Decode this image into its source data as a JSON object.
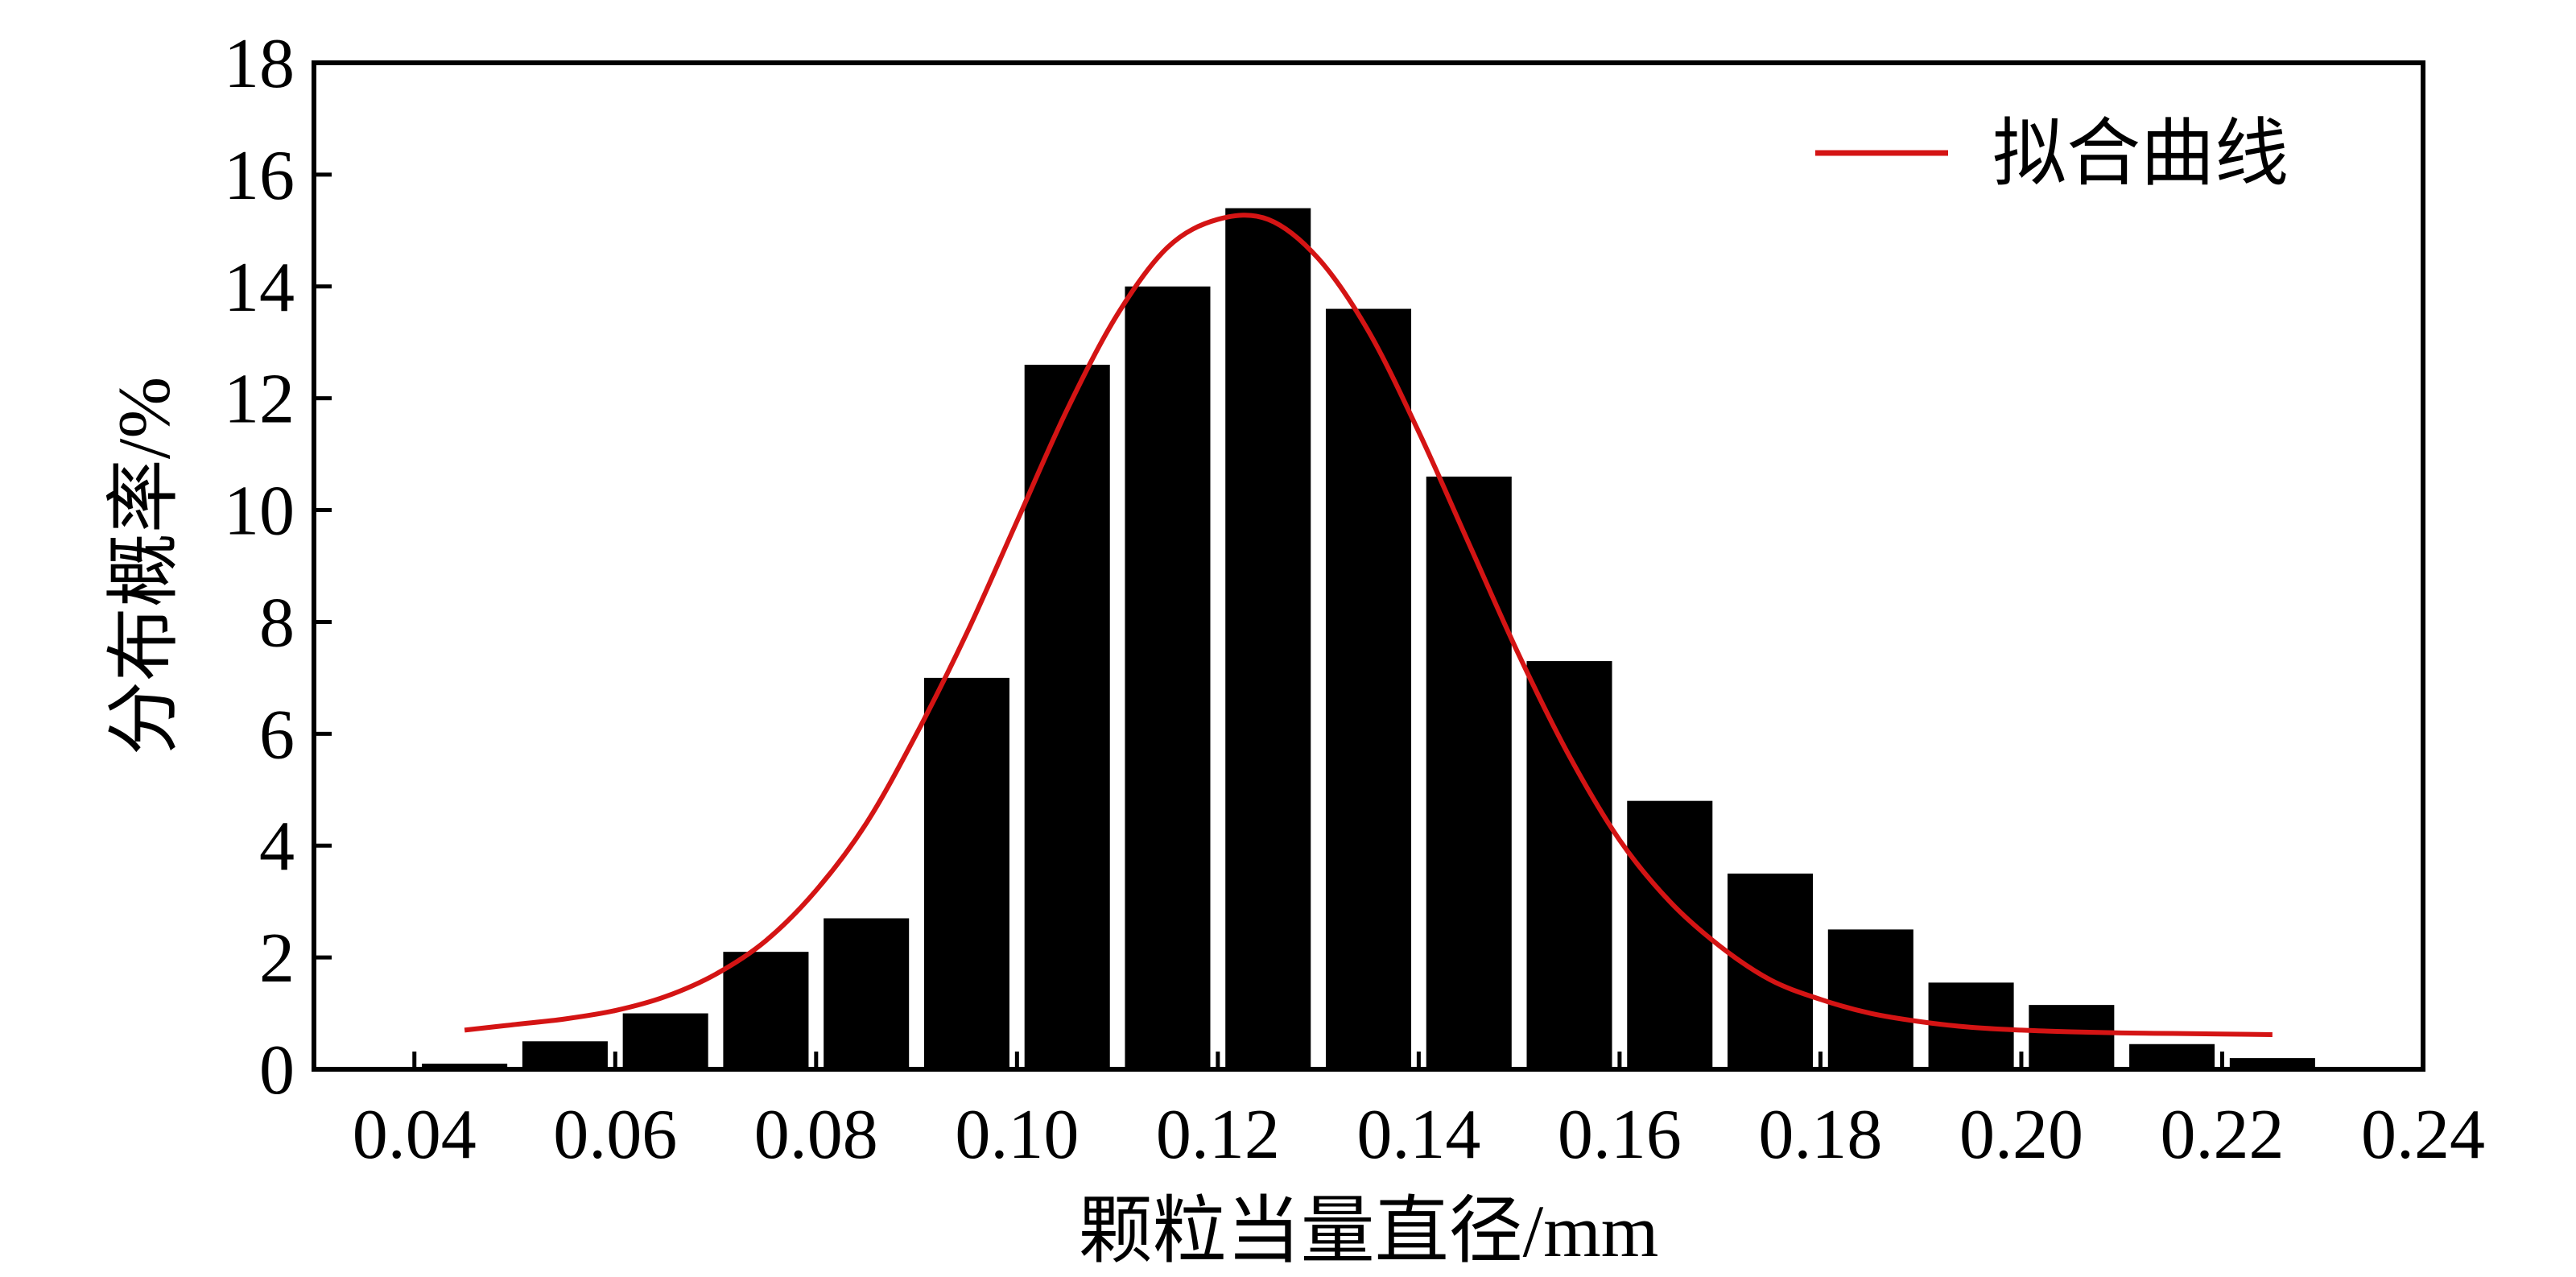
{
  "chart_data": {
    "type": "bar",
    "xlabel": "颗粒当量直径/mm",
    "ylabel": "分布概率/%",
    "xlim": [
      0.03,
      0.24
    ],
    "ylim": [
      0,
      18
    ],
    "x_ticks": [
      "0.04",
      "0.06",
      "0.08",
      "0.10",
      "0.12",
      "0.14",
      "0.16",
      "0.18",
      "0.20",
      "0.22",
      "0.24"
    ],
    "y_ticks": [
      "0",
      "2",
      "4",
      "6",
      "8",
      "10",
      "12",
      "14",
      "16",
      "18"
    ],
    "grid": false,
    "legend": {
      "position": "top-right",
      "entries": [
        "拟合曲线"
      ]
    },
    "bar_width": 0.0085,
    "bars": {
      "x": [
        0.045,
        0.055,
        0.065,
        0.075,
        0.085,
        0.095,
        0.105,
        0.115,
        0.125,
        0.135,
        0.145,
        0.155,
        0.165,
        0.175,
        0.185,
        0.195,
        0.205,
        0.215,
        0.225
      ],
      "values": [
        0.1,
        0.5,
        1.0,
        2.1,
        2.7,
        7.0,
        12.6,
        14.0,
        15.4,
        13.6,
        10.6,
        7.3,
        4.8,
        3.5,
        2.5,
        1.55,
        1.15,
        0.45,
        0.2
      ],
      "color": "#000000"
    },
    "fit_curve": {
      "name": "拟合曲线",
      "color": "#d41414",
      "x": [
        0.045,
        0.05,
        0.055,
        0.06,
        0.065,
        0.07,
        0.075,
        0.08,
        0.085,
        0.09,
        0.095,
        0.1,
        0.105,
        0.11,
        0.115,
        0.12,
        0.125,
        0.13,
        0.135,
        0.14,
        0.145,
        0.15,
        0.155,
        0.16,
        0.165,
        0.17,
        0.175,
        0.18,
        0.185,
        0.19,
        0.195,
        0.2,
        0.205,
        0.21,
        0.215,
        0.22,
        0.225
      ],
      "y": [
        0.7,
        0.8,
        0.9,
        1.05,
        1.3,
        1.7,
        2.3,
        3.2,
        4.4,
        6.0,
        7.8,
        9.8,
        11.8,
        13.5,
        14.7,
        15.2,
        15.2,
        14.5,
        13.2,
        11.4,
        9.4,
        7.4,
        5.6,
        4.1,
        3.0,
        2.2,
        1.6,
        1.25,
        1.0,
        0.85,
        0.75,
        0.7,
        0.67,
        0.65,
        0.64,
        0.63,
        0.62
      ]
    }
  }
}
